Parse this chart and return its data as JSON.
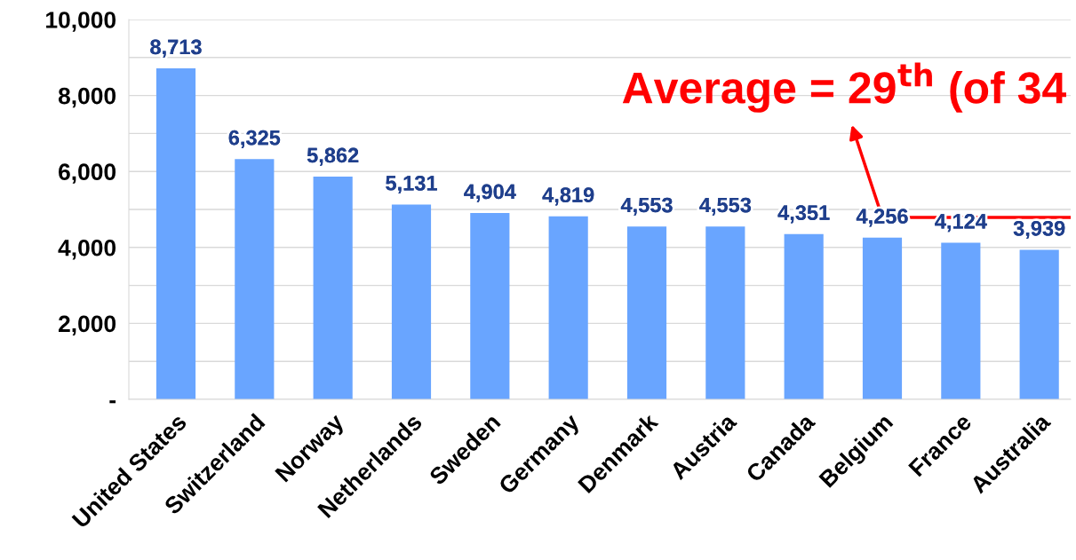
{
  "chart_data": {
    "type": "bar",
    "categories": [
      "United States",
      "Switzerland",
      "Norway",
      "Netherlands",
      "Sweden",
      "Germany",
      "Denmark",
      "Austria",
      "Canada",
      "Belgium",
      "France",
      "Australia"
    ],
    "values": [
      8713,
      6325,
      5862,
      5131,
      4904,
      4819,
      4553,
      4553,
      4351,
      4256,
      4124,
      3939
    ],
    "color": "#69a5ff",
    "value_labels": [
      "8,713",
      "6,325",
      "5,862",
      "5,131",
      "4,904",
      "4,819",
      "4,553",
      "4,553",
      "4,351",
      "4,256",
      "4,124",
      "3,939"
    ],
    "ylim": [
      0,
      10000
    ],
    "yticks": [
      {
        "value": 0,
        "label": "-"
      },
      {
        "value": 1000,
        "label": null
      },
      {
        "value": 2000,
        "label": "2,000"
      },
      {
        "value": 3000,
        "label": null
      },
      {
        "value": 4000,
        "label": "4,000"
      },
      {
        "value": 5000,
        "label": null
      },
      {
        "value": 6000,
        "label": "6,000"
      },
      {
        "value": 7000,
        "label": null
      },
      {
        "value": 8000,
        "label": "8,000"
      },
      {
        "value": 9000,
        "label": null
      },
      {
        "value": 10000,
        "label": "10,000"
      }
    ],
    "grid": "y",
    "ref_lines": [
      {
        "axis": "y",
        "value": 4790,
        "color": "#ff0000"
      }
    ],
    "annotations": [
      {
        "text": "Average = 29$^{th}$ (of 34",
        "x": "Belgium",
        "y": 4790
      }
    ]
  }
}
